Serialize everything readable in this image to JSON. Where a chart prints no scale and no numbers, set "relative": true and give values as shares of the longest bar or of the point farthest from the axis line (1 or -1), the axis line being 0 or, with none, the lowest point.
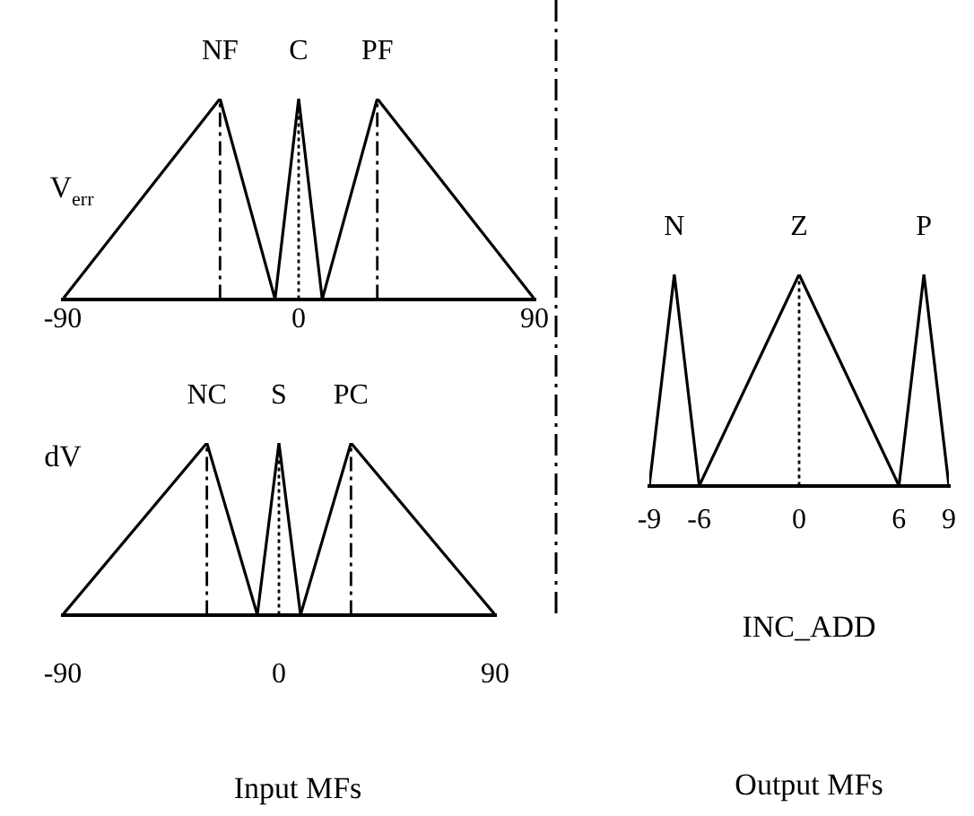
{
  "chart_data": [
    {
      "type": "line",
      "ylabel": "V$_{err}$",
      "relative": true,
      "xlim": [
        -90,
        90
      ],
      "xticks": [
        -90,
        0,
        90
      ],
      "grid": false,
      "legend": false,
      "marker": "none",
      "series": [
        {
          "name": "NF",
          "color": "#000000",
          "x": [
            -90,
            -30,
            -9
          ],
          "values": [
            0,
            1,
            0
          ]
        },
        {
          "name": "C",
          "color": "#000000",
          "x": [
            -9,
            0,
            9
          ],
          "values": [
            0,
            1,
            0
          ]
        },
        {
          "name": "PF",
          "color": "#000000",
          "x": [
            9,
            30,
            90
          ],
          "values": [
            0,
            1,
            0
          ]
        }
      ],
      "ref_lines": [
        {
          "axis": "x",
          "value": -30,
          "line_style": "dashed"
        },
        {
          "axis": "x",
          "value": 0,
          "line_style": "dotted"
        },
        {
          "axis": "x",
          "value": 30,
          "line_style": "dashed"
        }
      ]
    },
    {
      "type": "line",
      "ylabel": "dV",
      "relative": true,
      "xlim": [
        -90,
        90
      ],
      "xticks": [
        -90,
        0,
        90
      ],
      "grid": false,
      "legend": false,
      "marker": "none",
      "series": [
        {
          "name": "NC",
          "color": "#000000",
          "x": [
            -90,
            -30,
            -9
          ],
          "values": [
            0,
            1,
            0
          ]
        },
        {
          "name": "S",
          "color": "#000000",
          "x": [
            -9,
            0,
            9
          ],
          "values": [
            0,
            1,
            0
          ]
        },
        {
          "name": "PC",
          "color": "#000000",
          "x": [
            9,
            30,
            90
          ],
          "values": [
            0,
            1,
            0
          ]
        }
      ],
      "ref_lines": [
        {
          "axis": "x",
          "value": -30,
          "line_style": "dashed"
        },
        {
          "axis": "x",
          "value": 0,
          "line_style": "dotted"
        },
        {
          "axis": "x",
          "value": 30,
          "line_style": "dashed"
        }
      ],
      "annotations": [
        "Input MFs"
      ]
    },
    {
      "type": "line",
      "xlabel": "INC_ADD",
      "relative": true,
      "xlim": [
        -9,
        9
      ],
      "xticks": [
        -9,
        -6,
        0,
        6,
        9
      ],
      "grid": false,
      "legend": false,
      "marker": "none",
      "series": [
        {
          "name": "N",
          "color": "#000000",
          "x": [
            -9,
            -7.5,
            -6
          ],
          "values": [
            0,
            1,
            0
          ]
        },
        {
          "name": "Z",
          "color": "#000000",
          "x": [
            -6,
            0,
            6
          ],
          "values": [
            0,
            1,
            0
          ]
        },
        {
          "name": "P",
          "color": "#000000",
          "x": [
            6,
            7.5,
            9
          ],
          "values": [
            0,
            1,
            0
          ]
        }
      ],
      "ref_lines": [
        {
          "axis": "x",
          "value": 0,
          "line_style": "dotted"
        }
      ],
      "annotations": [
        "Output MFs"
      ]
    }
  ]
}
